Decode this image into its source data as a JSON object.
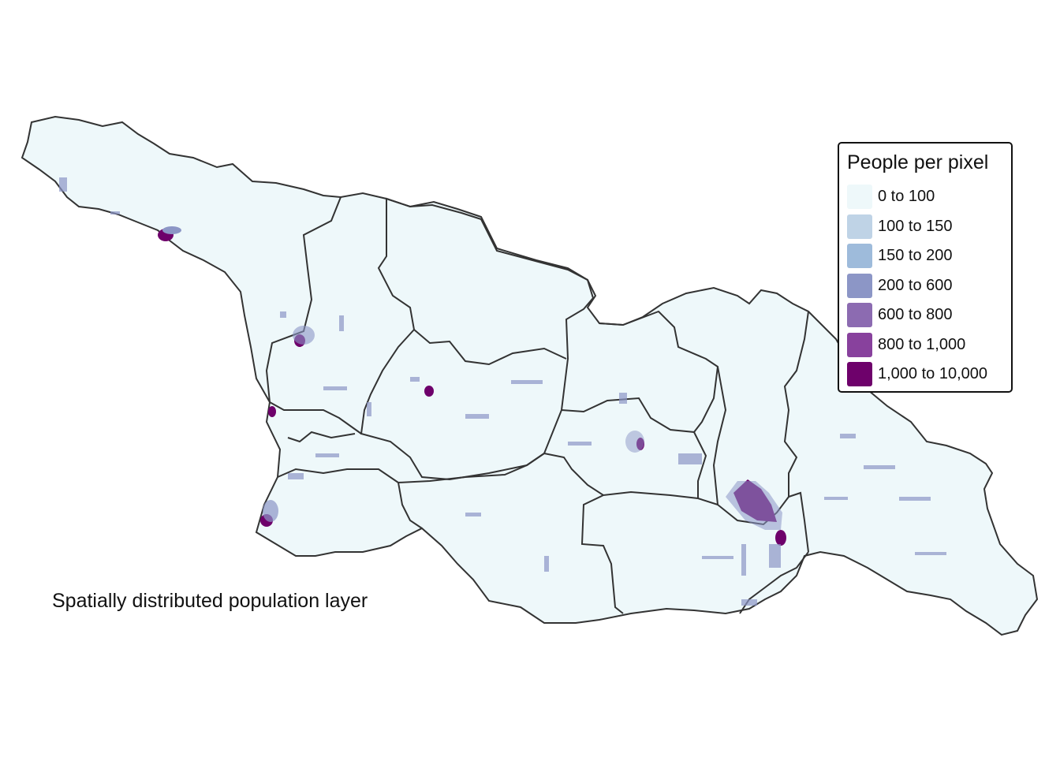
{
  "caption": "Spatially distributed population layer",
  "legend": {
    "title": "People per pixel",
    "items": [
      {
        "label": "0 to 100",
        "color": "#eef8fa"
      },
      {
        "label": "100 to 150",
        "color": "#bfd3e6"
      },
      {
        "label": "150 to 200",
        "color": "#9ebbdb"
      },
      {
        "label": "200 to 600",
        "color": "#8c96c6"
      },
      {
        "label": "600 to 800",
        "color": "#8c6bb1"
      },
      {
        "label": "800 to 1,000",
        "color": "#88419d"
      },
      {
        "label": "1,000 to 10,000",
        "color": "#6e016b"
      }
    ]
  },
  "colors": {
    "land": "#eef8fa",
    "boundary": "#333333"
  }
}
